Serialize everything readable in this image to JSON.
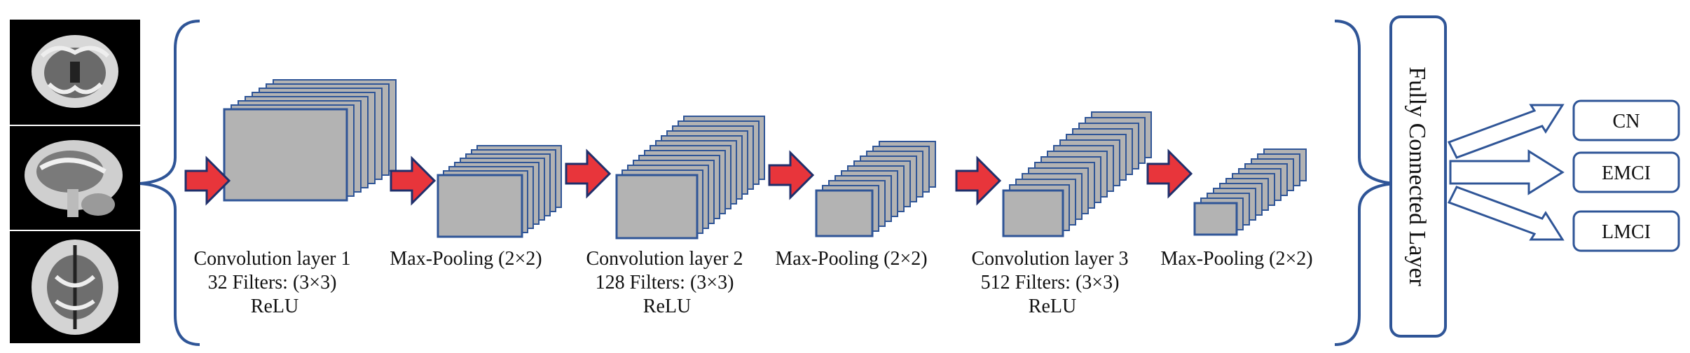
{
  "stages": [
    {
      "lines": [
        "Convolution layer 1",
        "32 Filters: (3×3)",
        "ReLU"
      ]
    },
    {
      "lines": [
        "Max-Pooling (2×2)"
      ]
    },
    {
      "lines": [
        "Convolution layer 2",
        "128 Filters: (3×3)",
        "ReLU"
      ]
    },
    {
      "lines": [
        "Max-Pooling (2×2)"
      ]
    },
    {
      "lines": [
        "Convolution layer 3",
        "512 Filters: (3×3)",
        "ReLU"
      ]
    },
    {
      "lines": [
        "Max-Pooling (2×2)"
      ]
    }
  ],
  "fully_connected": "Fully Connected Layer",
  "outputs": [
    "CN",
    "EMCI",
    "LMCI"
  ],
  "colors": {
    "feature_map_fill": "#b3b3b3",
    "feature_map_stroke": "#2f5597",
    "arrow_fill": "#e8353b",
    "arrow_stroke": "#1f2f6b",
    "bracket": "#2f5597",
    "box_stroke": "#2f5597",
    "brain_background": "#000000"
  }
}
